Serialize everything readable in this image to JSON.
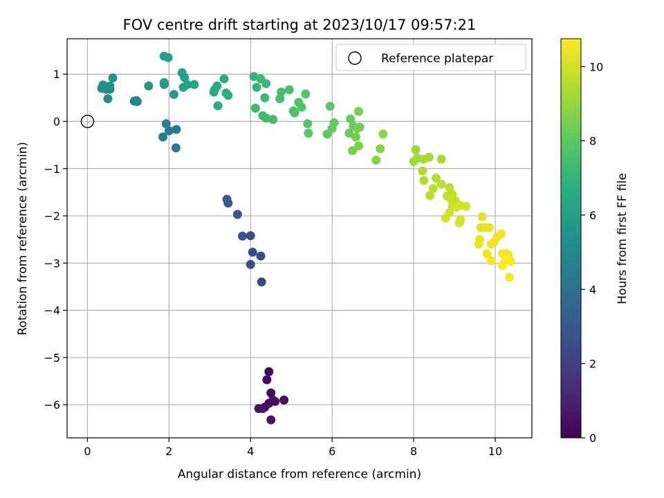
{
  "chart_data": {
    "type": "scatter",
    "title": "FOV centre drift starting at 2023/10/17 09:57:21",
    "xlabel": "Angular distance from reference (arcmin)",
    "ylabel": "Rotation from reference (arcmin)",
    "xlim": [
      -0.5,
      10.9
    ],
    "ylim": [
      -6.7,
      1.75
    ],
    "xticks": [
      "0",
      "2",
      "4",
      "6",
      "8",
      "10"
    ],
    "yticks": [
      "−6",
      "−5",
      "−4",
      "−3",
      "−2",
      "−1",
      "0",
      "1"
    ],
    "grid": true,
    "legend": {
      "position": "top-right",
      "entries": [
        "Reference platepar"
      ]
    },
    "reference": {
      "x": 0,
      "y": 0,
      "marker": "open-circle"
    },
    "colorbar": {
      "label": "Hours from first FF file",
      "min": 0,
      "max": 10.75,
      "ticks": [
        "0",
        "2",
        "4",
        "6",
        "8",
        "10"
      ],
      "colormap": "viridis"
    },
    "points": [
      {
        "x": 4.45,
        "y": -5.3,
        "h": 0.2
      },
      {
        "x": 4.4,
        "y": -5.47,
        "h": 0.25
      },
      {
        "x": 4.5,
        "y": -5.75,
        "h": 0.3
      },
      {
        "x": 4.45,
        "y": -5.97,
        "h": 0.35
      },
      {
        "x": 4.6,
        "y": -5.93,
        "h": 0.4
      },
      {
        "x": 4.55,
        "y": -5.9,
        "h": 0.45
      },
      {
        "x": 4.82,
        "y": -5.9,
        "h": 0.5
      },
      {
        "x": 4.35,
        "y": -6.05,
        "h": 0.55
      },
      {
        "x": 4.2,
        "y": -6.08,
        "h": 0.6
      },
      {
        "x": 4.5,
        "y": -6.32,
        "h": 0.65
      },
      {
        "x": 4.3,
        "y": -6.08,
        "h": 0.5
      },
      {
        "x": 4.27,
        "y": -3.4,
        "h": 2.3
      },
      {
        "x": 4.25,
        "y": -2.85,
        "h": 2.4
      },
      {
        "x": 4.05,
        "y": -2.77,
        "h": 2.5
      },
      {
        "x": 4.0,
        "y": -3.03,
        "h": 2.55
      },
      {
        "x": 4.0,
        "y": -2.42,
        "h": 2.6
      },
      {
        "x": 3.8,
        "y": -2.43,
        "h": 2.65
      },
      {
        "x": 3.68,
        "y": -1.97,
        "h": 2.8
      },
      {
        "x": 3.45,
        "y": -1.73,
        "h": 2.9
      },
      {
        "x": 3.42,
        "y": -1.65,
        "h": 3.0
      },
      {
        "x": 2.17,
        "y": -0.56,
        "h": 4.3
      },
      {
        "x": 1.85,
        "y": -0.33,
        "h": 4.4
      },
      {
        "x": 2.0,
        "y": -0.2,
        "h": 4.45
      },
      {
        "x": 2.18,
        "y": -0.17,
        "h": 4.5
      },
      {
        "x": 1.93,
        "y": -0.05,
        "h": 4.55
      },
      {
        "x": 1.15,
        "y": 0.43,
        "h": 4.8
      },
      {
        "x": 1.2,
        "y": 0.44,
        "h": 4.85
      },
      {
        "x": 1.22,
        "y": 0.42,
        "h": 4.9
      },
      {
        "x": 0.5,
        "y": 0.48,
        "h": 5.1
      },
      {
        "x": 0.35,
        "y": 0.7,
        "h": 5.2
      },
      {
        "x": 0.45,
        "y": 0.68,
        "h": 5.25
      },
      {
        "x": 0.55,
        "y": 0.68,
        "h": 5.3
      },
      {
        "x": 0.38,
        "y": 0.77,
        "h": 5.35
      },
      {
        "x": 0.55,
        "y": 0.75,
        "h": 5.4
      },
      {
        "x": 0.62,
        "y": 0.92,
        "h": 5.5
      },
      {
        "x": 1.5,
        "y": 0.75,
        "h": 5.7
      },
      {
        "x": 1.88,
        "y": 0.78,
        "h": 5.8
      },
      {
        "x": 1.88,
        "y": 0.82,
        "h": 5.85
      },
      {
        "x": 2.12,
        "y": 0.57,
        "h": 5.9
      },
      {
        "x": 1.88,
        "y": 1.38,
        "h": 6.0
      },
      {
        "x": 1.98,
        "y": 1.35,
        "h": 6.05
      },
      {
        "x": 2.32,
        "y": 1.03,
        "h": 6.1
      },
      {
        "x": 2.38,
        "y": 0.93,
        "h": 6.15
      },
      {
        "x": 2.35,
        "y": 0.72,
        "h": 6.2
      },
      {
        "x": 2.45,
        "y": 0.78,
        "h": 6.25
      },
      {
        "x": 2.62,
        "y": 0.78,
        "h": 6.3
      },
      {
        "x": 3.1,
        "y": 0.62,
        "h": 6.5
      },
      {
        "x": 3.12,
        "y": 0.67,
        "h": 6.55
      },
      {
        "x": 3.18,
        "y": 0.75,
        "h": 6.6
      },
      {
        "x": 3.2,
        "y": 0.33,
        "h": 6.65
      },
      {
        "x": 3.35,
        "y": 0.9,
        "h": 6.7
      },
      {
        "x": 3.4,
        "y": 0.6,
        "h": 6.75
      },
      {
        "x": 3.45,
        "y": 0.55,
        "h": 6.8
      },
      {
        "x": 4.08,
        "y": 0.95,
        "h": 7.0
      },
      {
        "x": 4.15,
        "y": 0.72,
        "h": 7.05
      },
      {
        "x": 4.25,
        "y": 0.9,
        "h": 7.1
      },
      {
        "x": 4.38,
        "y": 0.8,
        "h": 7.15
      },
      {
        "x": 4.35,
        "y": 0.5,
        "h": 7.2
      },
      {
        "x": 4.12,
        "y": 0.28,
        "h": 7.25
      },
      {
        "x": 4.3,
        "y": 0.12,
        "h": 7.3
      },
      {
        "x": 4.38,
        "y": 0.07,
        "h": 7.35
      },
      {
        "x": 4.55,
        "y": 0.04,
        "h": 7.4
      },
      {
        "x": 4.72,
        "y": 0.48,
        "h": 7.45
      },
      {
        "x": 4.75,
        "y": 0.62,
        "h": 7.5
      },
      {
        "x": 4.95,
        "y": 0.67,
        "h": 7.55
      },
      {
        "x": 5.05,
        "y": 0.22,
        "h": 7.6
      },
      {
        "x": 5.08,
        "y": 0.18,
        "h": 7.65
      },
      {
        "x": 5.18,
        "y": 0.4,
        "h": 7.7
      },
      {
        "x": 5.25,
        "y": 0.3,
        "h": 7.75
      },
      {
        "x": 5.35,
        "y": 0.58,
        "h": 7.8
      },
      {
        "x": 5.4,
        "y": -0.05,
        "h": 7.85
      },
      {
        "x": 5.42,
        "y": -0.25,
        "h": 7.9
      },
      {
        "x": 5.95,
        "y": 0.32,
        "h": 8.0
      },
      {
        "x": 5.88,
        "y": -0.27,
        "h": 8.05
      },
      {
        "x": 6.0,
        "y": -0.15,
        "h": 8.1
      },
      {
        "x": 6.05,
        "y": -0.03,
        "h": 8.15
      },
      {
        "x": 6.45,
        "y": 0.05,
        "h": 8.2
      },
      {
        "x": 6.42,
        "y": -0.25,
        "h": 8.25
      },
      {
        "x": 6.52,
        "y": -0.1,
        "h": 8.3
      },
      {
        "x": 6.58,
        "y": -0.33,
        "h": 8.35
      },
      {
        "x": 6.62,
        "y": -0.15,
        "h": 8.4
      },
      {
        "x": 6.68,
        "y": -0.12,
        "h": 8.45
      },
      {
        "x": 6.65,
        "y": 0.21,
        "h": 8.5
      },
      {
        "x": 6.5,
        "y": -0.62,
        "h": 8.55
      },
      {
        "x": 6.65,
        "y": -0.52,
        "h": 8.6
      },
      {
        "x": 7.08,
        "y": -0.82,
        "h": 8.7
      },
      {
        "x": 7.18,
        "y": -0.58,
        "h": 8.75
      },
      {
        "x": 7.25,
        "y": -0.27,
        "h": 8.8
      },
      {
        "x": 8.05,
        "y": -0.6,
        "h": 9.1
      },
      {
        "x": 8.0,
        "y": -0.85,
        "h": 9.15
      },
      {
        "x": 8.1,
        "y": -0.78,
        "h": 9.2
      },
      {
        "x": 8.25,
        "y": -0.8,
        "h": 9.25
      },
      {
        "x": 8.38,
        "y": -0.76,
        "h": 9.3
      },
      {
        "x": 8.68,
        "y": -0.8,
        "h": 9.35
      },
      {
        "x": 8.22,
        "y": -1.05,
        "h": 9.4
      },
      {
        "x": 8.25,
        "y": -1.25,
        "h": 9.45
      },
      {
        "x": 8.55,
        "y": -1.2,
        "h": 9.5
      },
      {
        "x": 8.68,
        "y": -1.33,
        "h": 9.55
      },
      {
        "x": 8.48,
        "y": -1.42,
        "h": 9.6
      },
      {
        "x": 8.4,
        "y": -1.57,
        "h": 9.65
      },
      {
        "x": 8.88,
        "y": -1.4,
        "h": 9.7
      },
      {
        "x": 8.82,
        "y": -1.58,
        "h": 9.75
      },
      {
        "x": 8.95,
        "y": -1.55,
        "h": 9.8
      },
      {
        "x": 8.92,
        "y": -1.65,
        "h": 9.85
      },
      {
        "x": 9.02,
        "y": -1.68,
        "h": 9.9
      },
      {
        "x": 8.95,
        "y": -1.8,
        "h": 9.95
      },
      {
        "x": 9.05,
        "y": -1.82,
        "h": 10.0
      },
      {
        "x": 9.15,
        "y": -1.78,
        "h": 10.05
      },
      {
        "x": 9.28,
        "y": -1.8,
        "h": 10.1
      },
      {
        "x": 8.88,
        "y": -1.93,
        "h": 10.0
      },
      {
        "x": 8.78,
        "y": -2.05,
        "h": 10.05
      },
      {
        "x": 9.15,
        "y": -2.08,
        "h": 10.1
      },
      {
        "x": 9.12,
        "y": -2.15,
        "h": 10.15
      },
      {
        "x": 9.68,
        "y": -2.02,
        "h": 10.25
      },
      {
        "x": 9.65,
        "y": -2.25,
        "h": 10.3
      },
      {
        "x": 9.75,
        "y": -2.25,
        "h": 10.35
      },
      {
        "x": 9.85,
        "y": -2.25,
        "h": 10.4
      },
      {
        "x": 9.62,
        "y": -2.5,
        "h": 10.4
      },
      {
        "x": 9.6,
        "y": -2.6,
        "h": 10.45
      },
      {
        "x": 9.9,
        "y": -2.6,
        "h": 10.45
      },
      {
        "x": 9.98,
        "y": -2.55,
        "h": 10.5
      },
      {
        "x": 10.05,
        "y": -2.45,
        "h": 10.5
      },
      {
        "x": 10.15,
        "y": -2.38,
        "h": 10.55
      },
      {
        "x": 9.8,
        "y": -2.8,
        "h": 10.55
      },
      {
        "x": 10.18,
        "y": -2.8,
        "h": 10.6
      },
      {
        "x": 10.28,
        "y": -2.8,
        "h": 10.6
      },
      {
        "x": 10.32,
        "y": -2.82,
        "h": 10.65
      },
      {
        "x": 9.9,
        "y": -2.95,
        "h": 10.65
      },
      {
        "x": 10.25,
        "y": -2.95,
        "h": 10.7
      },
      {
        "x": 10.38,
        "y": -2.97,
        "h": 10.7
      },
      {
        "x": 10.18,
        "y": -3.05,
        "h": 10.72
      },
      {
        "x": 10.35,
        "y": -3.3,
        "h": 10.75
      }
    ]
  }
}
